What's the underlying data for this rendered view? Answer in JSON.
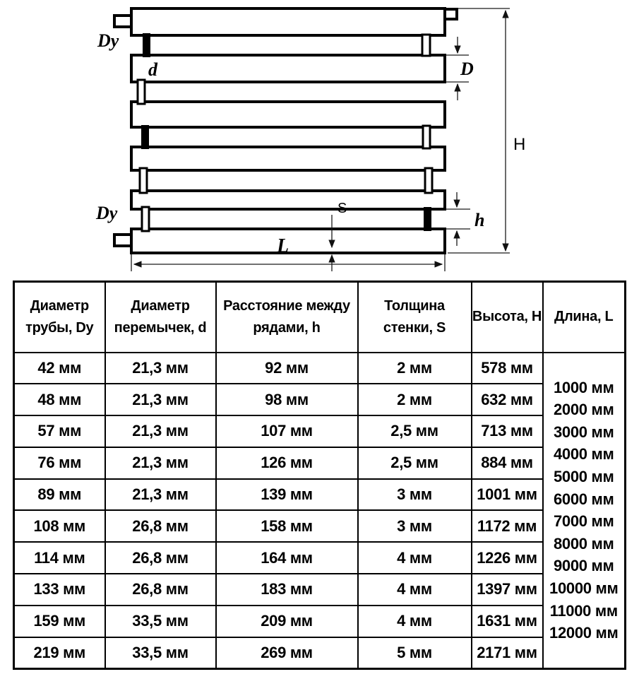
{
  "diagram": {
    "labels": {
      "pipe_diameter_top": "Dy",
      "pipe_diameter_bottom": "Dy",
      "jumper_diameter": "d",
      "tube_diameter": "D",
      "height": "H",
      "row_spacing": "h",
      "wall_thickness": "S",
      "length": "L"
    }
  },
  "table": {
    "headers": [
      "Диаметр трубы, Dy",
      "Диаметр перемычек, d",
      "Расстояние между рядами, h",
      "Толщина стенки, S",
      "Высота, H",
      "Длина, L"
    ],
    "rows": [
      [
        "42 мм",
        "21,3 мм",
        "92 мм",
        "2 мм",
        "578 мм"
      ],
      [
        "48 мм",
        "21,3 мм",
        "98 мм",
        "2 мм",
        "632 мм"
      ],
      [
        "57 мм",
        "21,3 мм",
        "107 мм",
        "2,5 мм",
        "713 мм"
      ],
      [
        "76 мм",
        "21,3 мм",
        "126 мм",
        "2,5 мм",
        "884 мм"
      ],
      [
        "89 мм",
        "21,3 мм",
        "139 мм",
        "3 мм",
        "1001 мм"
      ],
      [
        "108 мм",
        "26,8 мм",
        "158 мм",
        "3 мм",
        "1172 мм"
      ],
      [
        "114 мм",
        "26,8 мм",
        "164 мм",
        "4 мм",
        "1226 мм"
      ],
      [
        "133 мм",
        "26,8 мм",
        "183 мм",
        "4 мм",
        "1397 мм"
      ],
      [
        "159 мм",
        "33,5 мм",
        "209 мм",
        "4 мм",
        "1631 мм"
      ],
      [
        "219 мм",
        "33,5 мм",
        "269 мм",
        "5 мм",
        "2171 мм"
      ]
    ],
    "lengths": [
      "1000 мм",
      "2000 мм",
      "3000 мм",
      "4000 мм",
      "5000 мм",
      "6000 мм",
      "7000 мм",
      "8000 мм",
      "9000 мм",
      "10000 мм",
      "11000 мм",
      "12000 мм"
    ]
  },
  "colors": {
    "line": "#000000",
    "background": "#ffffff"
  }
}
